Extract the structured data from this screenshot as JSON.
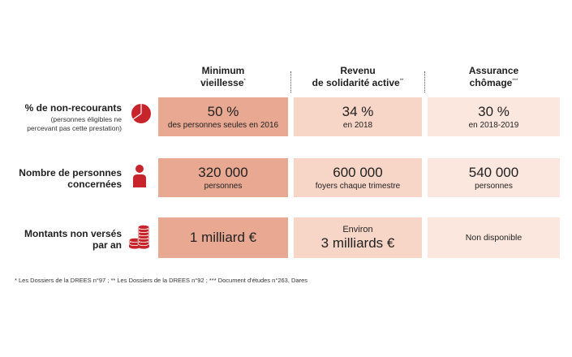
{
  "headers": {
    "col1": {
      "line1": "Minimum",
      "line2": "vieillesse",
      "mark": "*"
    },
    "col2": {
      "line1": "Revenu",
      "line2": "de solidarité active",
      "mark": "**"
    },
    "col3": {
      "line1": "Assurance",
      "line2": "chômage",
      "mark": "***"
    }
  },
  "rows": [
    {
      "label": "% de non-recourants",
      "sublabel_line1": "(personnes éligibles ne",
      "sublabel_line2": "percevant pas cette prestation)",
      "icon": "pie-chart-icon",
      "cells": [
        {
          "big": "50 %",
          "small": "des personnes seules en 2016"
        },
        {
          "big": "34 %",
          "small": "en 2018"
        },
        {
          "big": "30 %",
          "small": "en 2018-2019"
        }
      ]
    },
    {
      "label_line1": "Nombre de personnes",
      "label_line2": "concernées",
      "icon": "person-icon",
      "cells": [
        {
          "big": "320 000",
          "small": "personnes"
        },
        {
          "big": "600 000",
          "small": "foyers chaque trimestre"
        },
        {
          "big": "540 000",
          "small": "personnes"
        }
      ]
    },
    {
      "label_line1": "Montants non versés",
      "label_line2": "par an",
      "icon": "coins-icon",
      "cells": [
        {
          "big": "1 milliard €"
        },
        {
          "pre": "Environ",
          "big": "3 milliards €"
        },
        {
          "plain": "Non disponible"
        }
      ]
    }
  ],
  "footnote": "* Les Dossiers de la DREES n°97 ; ** Les Dossiers de la DREES n°92 ; *** Document d'études n°263, Dares",
  "colors": {
    "accent": "#c8242c",
    "col1_fill": "#e8a892",
    "col2_fill": "#f7d5c7",
    "col3_fill": "#fce7de"
  }
}
